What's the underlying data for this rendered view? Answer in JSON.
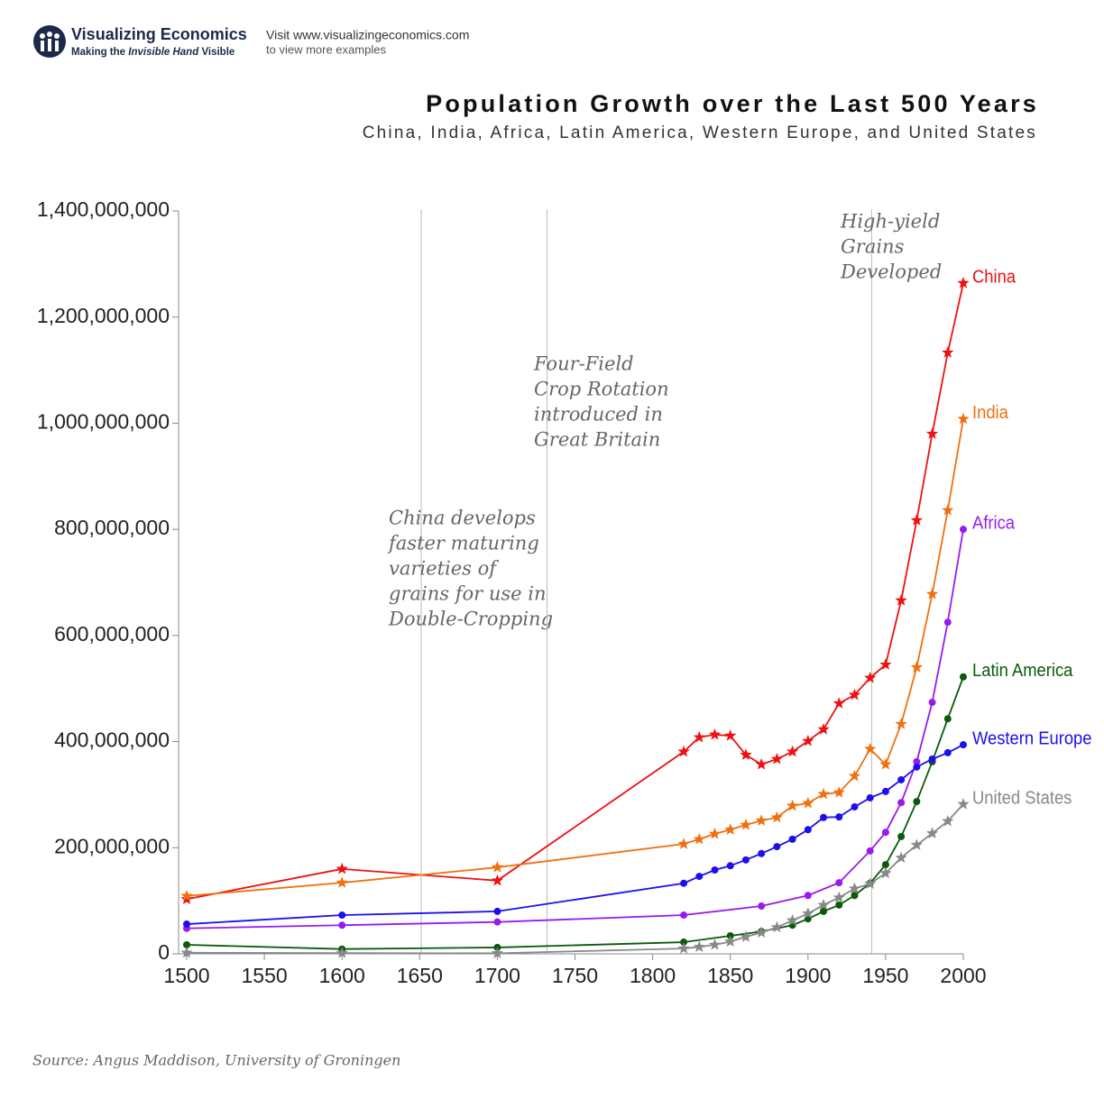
{
  "header": {
    "brand": "Visualizing Economics",
    "tagline_start": "Making the",
    "tagline_em": "Invisible Hand",
    "tagline_end": "Visible",
    "visit": "Visit www.visualizingeconomics.com",
    "visit_more": "to view more examples"
  },
  "chart_data": {
    "type": "line",
    "title": "Population Growth over the Last 500 Years",
    "subtitle": "China, India, Africa, Latin America, Western Europe, and United States",
    "source": "Source: Angus Maddison, University of Groningen",
    "xlim": [
      1500,
      2000
    ],
    "xticks": [
      1500,
      1550,
      1600,
      1650,
      1700,
      1750,
      1800,
      1850,
      1900,
      1950,
      2000
    ],
    "ylim": [
      0,
      1400000000
    ],
    "yticks": [
      0,
      {
        "value": 200000000,
        "label": "200,000,000"
      },
      {
        "value": 400000000,
        "label": "400,000,000"
      },
      {
        "value": 600000000,
        "label": "600,000,000"
      },
      {
        "value": 800000000,
        "label": "800,000,000"
      },
      {
        "value": 1000000000,
        "label": "1,000,000,000"
      },
      {
        "value": 1200000000,
        "label": "1,200,000,000"
      },
      {
        "value": 1400000000,
        "label": "1,400,000,000"
      }
    ],
    "grid": false,
    "annotations": [
      {
        "x": 1651,
        "lines": [
          "China develops",
          "faster maturing",
          "varieties of",
          "grains for use in",
          "Double-Cropping"
        ]
      },
      {
        "x": 1732,
        "lines": [
          "Four-Field",
          "Crop Rotation",
          "introduced in",
          "Great Britain"
        ]
      },
      {
        "x": 1941,
        "lines": [
          "High-yield",
          "Grains",
          "Developed"
        ]
      }
    ],
    "series": [
      {
        "name": "China",
        "color": "#ee1111",
        "marker": "star",
        "x": [
          1500,
          1600,
          1700,
          1820,
          1830,
          1840,
          1850,
          1860,
          1870,
          1880,
          1890,
          1900,
          1910,
          1920,
          1930,
          1940,
          1950,
          1960,
          1970,
          1980,
          1990,
          2000
        ],
        "values": [
          103000000,
          160000000,
          138000000,
          381000000,
          408000000,
          413000000,
          411000000,
          375000000,
          357000000,
          367000000,
          381000000,
          401000000,
          423000000,
          472000000,
          488000000,
          520000000,
          545000000,
          666000000,
          817000000,
          980000000,
          1133000000,
          1264000000
        ]
      },
      {
        "name": "India",
        "color": "#f07010",
        "marker": "star",
        "x": [
          1500,
          1600,
          1700,
          1820,
          1830,
          1840,
          1850,
          1860,
          1870,
          1880,
          1890,
          1900,
          1910,
          1920,
          1930,
          1940,
          1950,
          1960,
          1970,
          1980,
          1990,
          2000
        ],
        "values": [
          109000000,
          134000000,
          163000000,
          207000000,
          216000000,
          226000000,
          234000000,
          243000000,
          251000000,
          257000000,
          279000000,
          284000000,
          301000000,
          304000000,
          335000000,
          386000000,
          357000000,
          433000000,
          540000000,
          678000000,
          836000000,
          1008000000
        ]
      },
      {
        "name": "Africa",
        "color": "#9a1aee",
        "marker": "circle",
        "x": [
          1500,
          1600,
          1700,
          1820,
          1870,
          1900,
          1920,
          1940,
          1950,
          1960,
          1970,
          1980,
          1990,
          2000
        ],
        "values": [
          48000000,
          54000000,
          60000000,
          73000000,
          90000000,
          110000000,
          134000000,
          194000000,
          229000000,
          285000000,
          362000000,
          474000000,
          625000000,
          800000000
        ]
      },
      {
        "name": "Latin America",
        "color": "#0a5a0a",
        "marker": "circle",
        "x": [
          1500,
          1600,
          1700,
          1820,
          1850,
          1870,
          1890,
          1900,
          1910,
          1920,
          1930,
          1940,
          1950,
          1960,
          1970,
          1980,
          1990,
          2000
        ],
        "values": [
          17000000,
          9000000,
          12000000,
          22000000,
          34000000,
          42000000,
          54000000,
          66000000,
          80000000,
          92000000,
          110000000,
          133000000,
          168000000,
          221000000,
          287000000,
          362000000,
          443000000,
          522000000
        ]
      },
      {
        "name": "Western Europe",
        "color": "#1a10ee",
        "marker": "circle",
        "x": [
          1500,
          1600,
          1700,
          1820,
          1830,
          1840,
          1850,
          1860,
          1870,
          1880,
          1890,
          1900,
          1910,
          1920,
          1930,
          1940,
          1950,
          1960,
          1970,
          1980,
          1990,
          2000
        ],
        "values": [
          56000000,
          73000000,
          80000000,
          133000000,
          146000000,
          158000000,
          166000000,
          177000000,
          189000000,
          202000000,
          216000000,
          234000000,
          257000000,
          258000000,
          277000000,
          294000000,
          306000000,
          328000000,
          352000000,
          367000000,
          379000000,
          394000000
        ]
      },
      {
        "name": "United States",
        "color": "#888888",
        "marker": "star",
        "x": [
          1500,
          1600,
          1700,
          1820,
          1830,
          1840,
          1850,
          1860,
          1870,
          1880,
          1890,
          1900,
          1910,
          1920,
          1930,
          1940,
          1950,
          1960,
          1970,
          1980,
          1990,
          2000
        ],
        "values": [
          2000000,
          1500000,
          1000000,
          10000000,
          13000000,
          17000000,
          23000000,
          32000000,
          40000000,
          50000000,
          63000000,
          76000000,
          92000000,
          106000000,
          123000000,
          132000000,
          152000000,
          181000000,
          205000000,
          227000000,
          250000000,
          282000000
        ]
      }
    ]
  }
}
